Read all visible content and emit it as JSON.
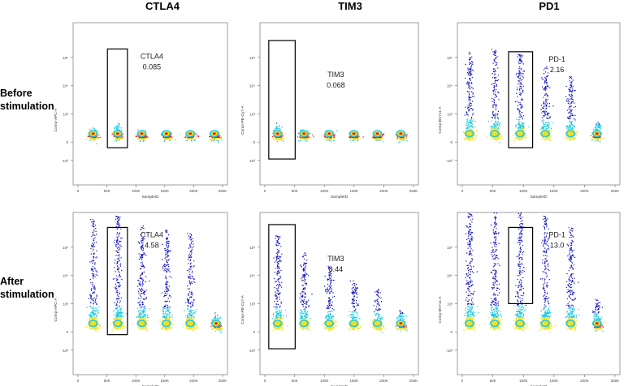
{
  "columns": [
    "CTLA4",
    "TIM3",
    "PD1"
  ],
  "rows": [
    "Before\nstimulation",
    "After\nstimulation"
  ],
  "axes": {
    "x_label": "SampleID",
    "x_ticks": [
      "0",
      "50K",
      "100K",
      "150K",
      "200K",
      "250K"
    ],
    "y_ticks": [
      "-10³",
      "0",
      "10³",
      "10⁴",
      "10⁵"
    ]
  },
  "colors": {
    "low": "#1010c0",
    "mid": "#18c8e0",
    "midhigh": "#f0e020",
    "high": "#e02010"
  },
  "chart_data": [
    {
      "type": "scatter",
      "id": "ctla4-before",
      "title": "CTLA4",
      "row": "Before stimulation",
      "ylabel": "Comp-APC-A",
      "xlabel": "SampleID",
      "xlim": [
        0,
        270000
      ],
      "gate": {
        "label": "CTLA4",
        "value": "0.085",
        "x_range": [
          60000,
          95000
        ],
        "y_range": [
          0.8,
          4.3
        ]
      },
      "populations": [
        {
          "x_center": 35000,
          "spread_up": 0.4
        },
        {
          "x_center": 78000,
          "spread_up": 0.5
        },
        {
          "x_center": 120000,
          "spread_up": 0.3
        },
        {
          "x_center": 163000,
          "spread_up": 0.25
        },
        {
          "x_center": 205000,
          "spread_up": 0.25
        },
        {
          "x_center": 247000,
          "spread_up": 0.25
        }
      ]
    },
    {
      "type": "scatter",
      "id": "tim3-before",
      "title": "TIM3",
      "row": "Before stimulation",
      "ylabel": "Comp-PE-Cy7-A",
      "xlabel": "SampleID",
      "xlim": [
        0,
        270000
      ],
      "gate": {
        "label": "TIM3",
        "value": "0.068",
        "x_range": [
          15000,
          60000
        ],
        "y_range": [
          0.4,
          4.6
        ]
      },
      "populations": [
        {
          "x_center": 30000,
          "spread_up": 0.5
        },
        {
          "x_center": 75000,
          "spread_up": 0.3
        },
        {
          "x_center": 118000,
          "spread_up": 0.25
        },
        {
          "x_center": 160000,
          "spread_up": 0.25
        },
        {
          "x_center": 200000,
          "spread_up": 0.25
        },
        {
          "x_center": 240000,
          "spread_up": 0.25
        }
      ]
    },
    {
      "type": "scatter",
      "id": "pd1-before",
      "title": "PD1",
      "row": "Before stimulation",
      "ylabel": "Comp-BV711-A",
      "xlabel": "SampleID",
      "xlim": [
        0,
        270000
      ],
      "gate": {
        "label": "PD-1",
        "value": "2.16",
        "x_range": [
          85000,
          125000
        ],
        "y_range": [
          0.8,
          4.2
        ]
      },
      "populations": [
        {
          "x_center": 20000,
          "spread_up": 3.1
        },
        {
          "x_center": 62000,
          "spread_up": 3.2
        },
        {
          "x_center": 104000,
          "spread_up": 3.0
        },
        {
          "x_center": 146000,
          "spread_up": 2.6
        },
        {
          "x_center": 188000,
          "spread_up": 2.2
        },
        {
          "x_center": 232000,
          "spread_up": 0.6
        }
      ]
    },
    {
      "type": "scatter",
      "id": "ctla4-after",
      "title": "CTLA4",
      "row": "After stimulation",
      "ylabel": "Comp-APC-A",
      "xlabel": "SampleID",
      "xlim": [
        0,
        270000
      ],
      "gate": {
        "label": "CTLA4",
        "value": "4.58",
        "x_range": [
          60000,
          95000
        ],
        "y_range": [
          0.9,
          4.7
        ]
      },
      "populations": [
        {
          "x_center": 35000,
          "spread_up": 3.9
        },
        {
          "x_center": 78000,
          "spread_up": 4.0
        },
        {
          "x_center": 120000,
          "spread_up": 3.7
        },
        {
          "x_center": 163000,
          "spread_up": 3.5
        },
        {
          "x_center": 205000,
          "spread_up": 3.4
        },
        {
          "x_center": 250000,
          "spread_up": 0.5
        }
      ]
    },
    {
      "type": "scatter",
      "id": "tim3-after",
      "title": "TIM3",
      "row": "After stimulation",
      "ylabel": "Comp-PE-Cy7-A",
      "xlabel": "SampleID",
      "xlim": [
        0,
        270000
      ],
      "gate": {
        "label": "TIM3",
        "value": "8.44",
        "x_range": [
          15000,
          60000
        ],
        "y_range": [
          0.4,
          4.8
        ]
      },
      "populations": [
        {
          "x_center": 30000,
          "spread_up": 3.3
        },
        {
          "x_center": 75000,
          "spread_up": 2.7
        },
        {
          "x_center": 118000,
          "spread_up": 2.2
        },
        {
          "x_center": 160000,
          "spread_up": 1.7
        },
        {
          "x_center": 200000,
          "spread_up": 1.4
        },
        {
          "x_center": 240000,
          "spread_up": 0.6
        }
      ]
    },
    {
      "type": "scatter",
      "id": "pd1-after",
      "title": "PD1",
      "row": "After stimulation",
      "ylabel": "Comp-BV711-A",
      "xlabel": "SampleID",
      "xlim": [
        0,
        270000
      ],
      "gate": {
        "label": "PD-1",
        "value": "13.0",
        "x_range": [
          85000,
          125000
        ],
        "y_range": [
          2.0,
          4.7
        ]
      },
      "populations": [
        {
          "x_center": 20000,
          "spread_up": 4.4
        },
        {
          "x_center": 62000,
          "spread_up": 4.3
        },
        {
          "x_center": 104000,
          "spread_up": 4.2
        },
        {
          "x_center": 146000,
          "spread_up": 4.0
        },
        {
          "x_center": 188000,
          "spread_up": 3.6
        },
        {
          "x_center": 232000,
          "spread_up": 1.0
        }
      ]
    }
  ]
}
